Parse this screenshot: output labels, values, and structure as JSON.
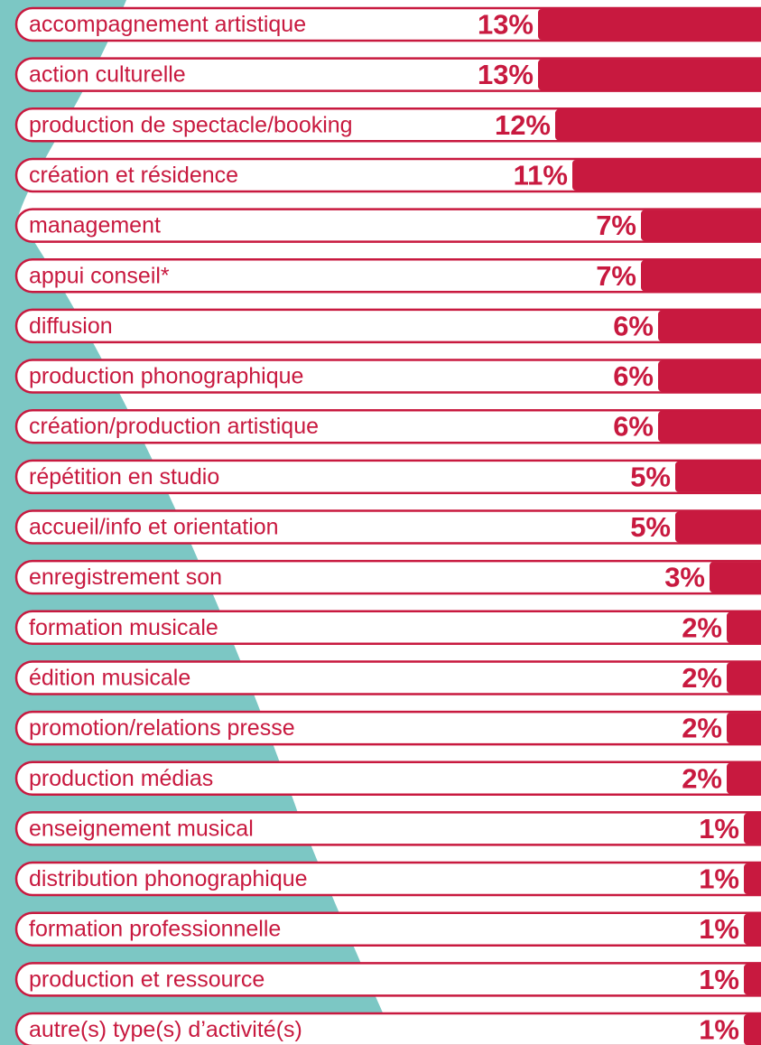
{
  "chart_data": {
    "type": "bar",
    "orientation": "horizontal",
    "color": "#c8193f",
    "categories": [
      "accompagnement artistique",
      "action culturelle",
      "production de spectacle/booking",
      "création et résidence",
      "management",
      "appui conseil*",
      "diffusion",
      "production phonographique",
      "création/production artistique",
      "répétition en studio",
      "accueil/info et orientation",
      "enregistrement son",
      "formation musicale",
      "édition musicale",
      "promotion/relations presse",
      "production médias",
      "enseignement musical",
      "distribution phonographique",
      "formation professionnelle",
      "production et ressource",
      "autre(s) type(s) d’activité(s)"
    ],
    "values": [
      13,
      13,
      12,
      11,
      7,
      7,
      6,
      6,
      6,
      5,
      5,
      3,
      2,
      2,
      2,
      2,
      1,
      1,
      1,
      1,
      1
    ],
    "value_labels": [
      "13%",
      "13%",
      "12%",
      "11%",
      "7%",
      "7%",
      "6%",
      "6%",
      "6%",
      "5%",
      "5%",
      "3%",
      "2%",
      "2%",
      "2%",
      "2%",
      "1%",
      "1%",
      "1%",
      "1%",
      "1%"
    ]
  }
}
